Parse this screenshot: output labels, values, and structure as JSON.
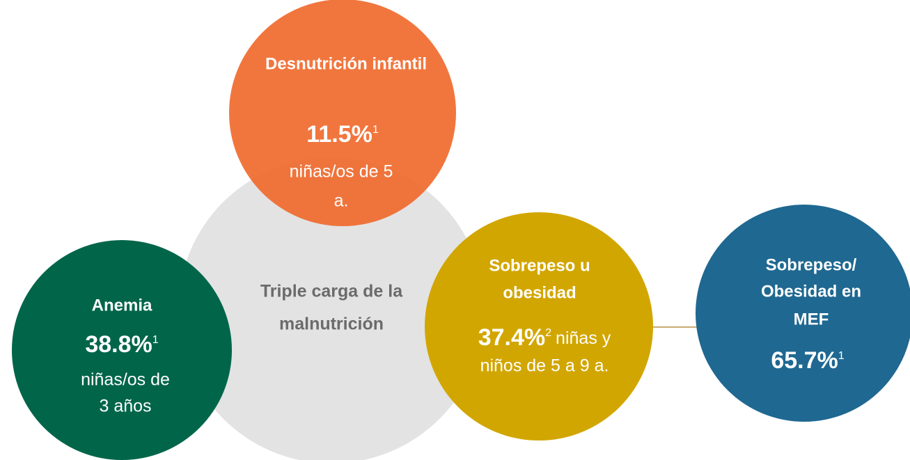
{
  "nodes": [
    {
      "title": [
        "Triple carga de la",
        "malnutrición"
      ]
    },
    {
      "title": [
        "Desnutrición infantil"
      ],
      "value": "11.5%",
      "note": "1",
      "description": [
        "niñas/os de 5",
        "a."
      ]
    },
    {
      "title": [
        "Anemia"
      ],
      "value": "38.8%",
      "note": "1",
      "description": [
        "niñas/os de",
        "3 años"
      ]
    },
    {
      "title": [
        "Sobrepeso u",
        "obesidad"
      ],
      "value": "37.4%",
      "note": "2",
      "description": [
        "niñas y",
        "niños de 5 a 9 a."
      ]
    },
    {
      "title": [
        "Sobrepeso/",
        "Obesidad en",
        "MEF"
      ],
      "value": "65.7%",
      "note": "1"
    }
  ]
}
